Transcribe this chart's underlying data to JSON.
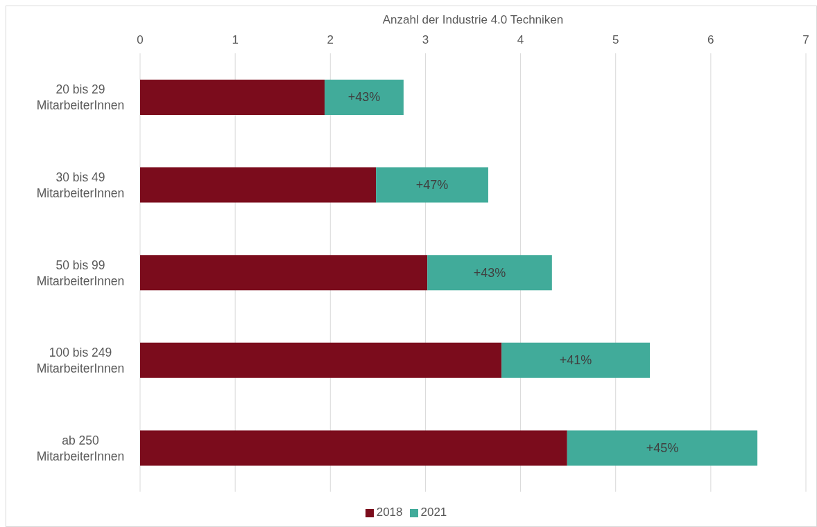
{
  "chart_data": {
    "type": "bar",
    "orientation": "horizontal",
    "stacked": true,
    "xlabel": "Anzahl der Industrie 4.0 Techniken",
    "categories": [
      "20 bis 29 MitarbeiterInnen",
      "30 bis 49 MitarbeiterInnen",
      "50 bis 99 MitarbeiterInnen",
      "100 bis 249 MitarbeiterInnen",
      "ab 250 MitarbeiterInnen"
    ],
    "series": [
      {
        "name": "2018",
        "color": "#7b0c1c",
        "values": [
          1.94,
          2.48,
          3.02,
          3.8,
          4.49
        ]
      },
      {
        "name": "2021",
        "color": "#41ab9a",
        "values": [
          0.83,
          1.18,
          1.31,
          1.56,
          2.0
        ]
      }
    ],
    "annotations": [
      "+43%",
      "+47%",
      "+43%",
      "+41%",
      "+45%"
    ],
    "xlim": [
      0,
      7
    ],
    "xticks": [
      0,
      1,
      2,
      3,
      4,
      5,
      6,
      7
    ],
    "grid": "x",
    "legend": "bottom"
  }
}
